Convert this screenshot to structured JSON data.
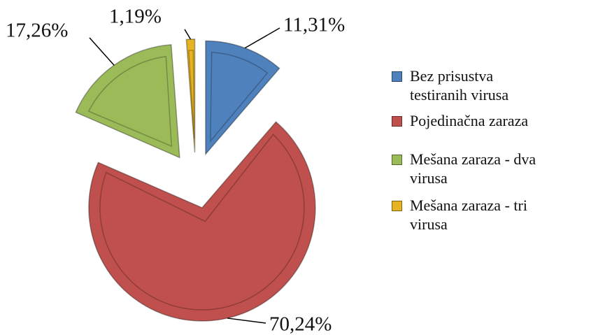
{
  "chart_data": {
    "type": "pie",
    "categories": [
      "Bez prisustva testiranih virusa",
      "Pojedinačna zaraza",
      "Mešana zaraza - dva virusa",
      "Mešana zaraza - tri virusa"
    ],
    "values": [
      11.31,
      70.24,
      17.26,
      1.19
    ],
    "value_labels": [
      "11,31%",
      "70,24%",
      "17,26%",
      "1,19%"
    ],
    "colors": [
      "#4f81bd",
      "#c0504d",
      "#9bbb59",
      "#e6b422"
    ],
    "legend": "right"
  }
}
